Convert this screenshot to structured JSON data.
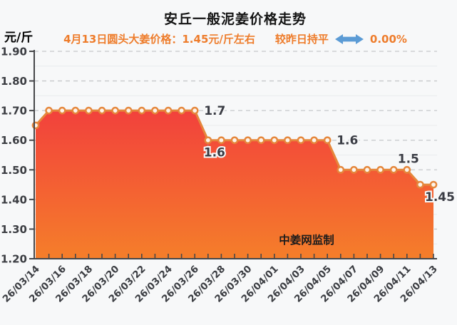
{
  "header": {
    "unit_label": "元/斤",
    "title": "安丘一般泥姜价格走势",
    "subtitle_price": "4月13日圆头大姜价格：1.45元/斤左右",
    "subtitle_compare": "较昨日持平",
    "subtitle_change": "0.00%",
    "arrow_icon": "left-right-double-arrow"
  },
  "chart_data": {
    "type": "area",
    "title": "安丘一般泥姜价格走势",
    "ylabel": "元/斤",
    "ylim": [
      1.2,
      1.9
    ],
    "y_tick_labels": [
      "1.90",
      "1.80",
      "1.70",
      "1.60",
      "1.50",
      "1.40",
      "1.30",
      "1.20"
    ],
    "x_tick_labels": [
      "26/03/14",
      "26/03/16",
      "26/03/18",
      "26/03/20",
      "26/03/22",
      "26/03/24",
      "26/03/26",
      "26/03/28",
      "26/03/30",
      "26/04/01",
      "26/04/03",
      "26/04/05",
      "26/04/07",
      "26/04/09",
      "26/04/11",
      "26/04/13"
    ],
    "points_per_x_tick": 2,
    "values": [
      1.65,
      1.7,
      1.7,
      1.7,
      1.7,
      1.7,
      1.7,
      1.7,
      1.7,
      1.7,
      1.7,
      1.7,
      1.7,
      1.6,
      1.6,
      1.6,
      1.6,
      1.6,
      1.6,
      1.6,
      1.6,
      1.6,
      1.6,
      1.5,
      1.5,
      1.5,
      1.5,
      1.5,
      1.5,
      1.45,
      1.45
    ],
    "annotations": [
      {
        "text": "1.7",
        "index": 12,
        "placement": "right"
      },
      {
        "text": "1.6",
        "index": 13,
        "placement": "below",
        "leader": true
      },
      {
        "text": "1.6",
        "index": 22,
        "placement": "right"
      },
      {
        "text": "1.5",
        "index": 28,
        "placement": "above"
      },
      {
        "text": "1.45",
        "index": 30,
        "placement": "below"
      }
    ],
    "watermark": "中姜网监制",
    "grid": "dashed-horizontal",
    "legend_position": "none"
  },
  "colors": {
    "background": "#f7f8f9",
    "title": "#141414",
    "subtitle": "#ee7c2b",
    "arrow": "#5b9bd5",
    "axis": "#46474a",
    "tick_label": "#3b3d42",
    "annotation": "#3a3c44",
    "grid_dashed": "#c6c8ca",
    "grid_faint": "#ebedef",
    "line": "#e5873c",
    "marker_fill": "#fdf4ea",
    "area_top": "#f2413c",
    "area_bottom": "#f57e2a",
    "watermark": "#1c1c1c"
  }
}
